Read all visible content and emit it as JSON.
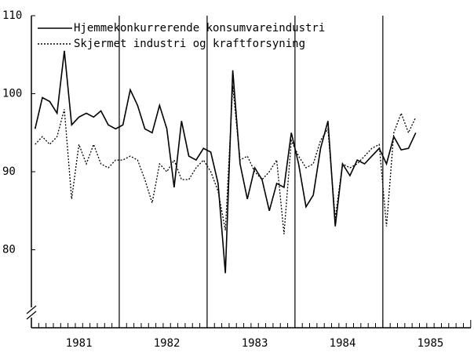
{
  "chart_data": {
    "type": "line",
    "categories": [
      null,
      null,
      null,
      null,
      null,
      null,
      "1981",
      null,
      null,
      null,
      null,
      null,
      null,
      null,
      null,
      null,
      null,
      null,
      "1982",
      null,
      null,
      null,
      null,
      null,
      null,
      null,
      null,
      null,
      null,
      null,
      "1983",
      null,
      null,
      null,
      null,
      null,
      null,
      null,
      null,
      null,
      null,
      null,
      "1984",
      null,
      null,
      null,
      null,
      null,
      null,
      null,
      null,
      null,
      null,
      null,
      "1985",
      null,
      null,
      null,
      null,
      null
    ],
    "series": [
      {
        "name": "Hjemmekonkurrerende konsumvareindustri",
        "color": "#000000",
        "dash": "solid",
        "values": [
          95.5,
          99.5,
          99,
          97.5,
          105.5,
          96,
          97,
          97.5,
          97,
          97.8,
          96,
          95.5,
          96,
          100.5,
          98.5,
          95.5,
          95,
          98.5,
          95.5,
          88,
          96.5,
          92,
          91.5,
          93,
          92.5,
          88.5,
          77,
          103,
          91,
          86.5,
          90.5,
          89,
          85,
          88.5,
          88,
          95,
          91,
          85.5,
          87,
          93,
          96.5,
          83,
          91,
          89.5,
          91.5,
          91,
          92,
          93,
          91,
          94.5,
          92.8,
          93,
          95,
          null,
          null,
          null,
          null,
          null,
          null,
          null
        ]
      },
      {
        "name": "Skjermet industri og kraftforsyning",
        "color": "#000000",
        "dash": "dotted",
        "values": [
          93.5,
          94.5,
          93.5,
          94.5,
          98,
          86.5,
          93.5,
          91,
          93.5,
          91,
          90.5,
          91.5,
          91.5,
          92,
          91.5,
          89,
          86,
          91,
          90,
          91.5,
          89,
          89,
          90.5,
          91.5,
          90,
          87.5,
          82.5,
          101,
          91.5,
          92,
          90,
          89,
          90,
          91.5,
          82,
          94,
          92,
          90.5,
          91,
          94,
          95.5,
          84,
          91,
          90.5,
          91,
          92,
          93,
          93.5,
          83,
          95,
          97.5,
          95,
          97,
          null,
          null,
          null,
          null,
          null,
          null,
          null
        ]
      }
    ],
    "ylim": [
      70,
      110
    ],
    "yticks": [
      80,
      90,
      100,
      110
    ]
  }
}
